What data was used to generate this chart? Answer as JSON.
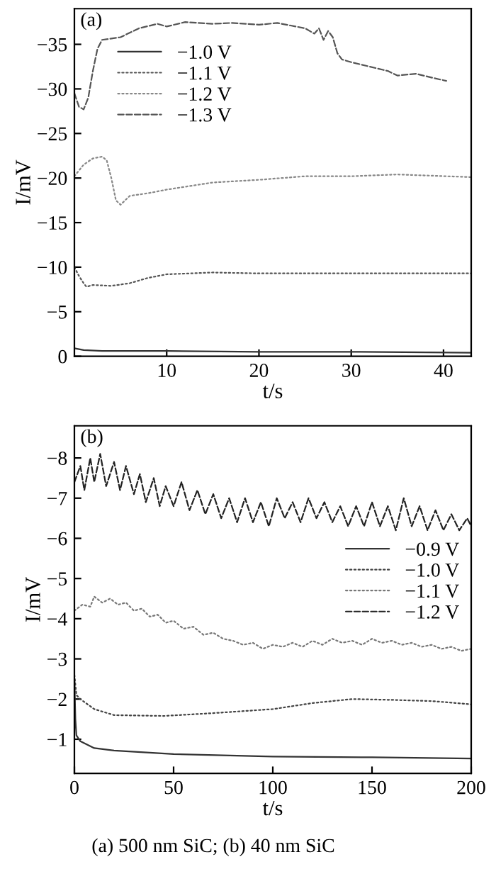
{
  "chart_data": [
    {
      "type": "line",
      "xlabel": "t/s",
      "ylabel": "I/mV",
      "annotations": [
        "(a)"
      ],
      "xlim": [
        0,
        43
      ],
      "ylim": [
        0,
        -39
      ],
      "xticks": [
        10,
        20,
        30,
        40
      ],
      "yticks": [
        {
          "value": 0,
          "label": "0"
        },
        {
          "value": -5,
          "label": "−5"
        },
        {
          "value": -10,
          "label": "−10"
        },
        {
          "value": -15,
          "label": "−15"
        },
        {
          "value": -20,
          "label": "−20"
        },
        {
          "value": -25,
          "label": "−25"
        },
        {
          "value": -30,
          "label": "−30"
        },
        {
          "value": -35,
          "label": "−35"
        }
      ],
      "legend": "top left",
      "grid": false,
      "series": [
        {
          "name": "−1.0 V",
          "color": "#333333",
          "line_style": "solid",
          "x": [
            0,
            1,
            3,
            10,
            20,
            30,
            43
          ],
          "values": [
            -0.9,
            -0.7,
            -0.6,
            -0.6,
            -0.5,
            -0.5,
            -0.4
          ]
        },
        {
          "name": "−1.1 V",
          "color": "#555555",
          "line_style": "dotted",
          "x": [
            0,
            0.5,
            1,
            1.3,
            2,
            4,
            6,
            8,
            10,
            15,
            20,
            30,
            43
          ],
          "values": [
            -10,
            -9,
            -8.2,
            -7.8,
            -8,
            -7.9,
            -8.2,
            -8.8,
            -9.2,
            -9.4,
            -9.3,
            -9.3,
            -9.3
          ]
        },
        {
          "name": "−1.2 V",
          "color": "#888888",
          "line_style": "dotted",
          "x": [
            0,
            1,
            2,
            3,
            3.5,
            4,
            4.5,
            5,
            6,
            8,
            10,
            15,
            20,
            25,
            30,
            35,
            43
          ],
          "values": [
            -20.2,
            -21.5,
            -22.2,
            -22.4,
            -22,
            -20,
            -17.5,
            -17,
            -18,
            -18.3,
            -18.7,
            -19.5,
            -19.8,
            -20.2,
            -20.2,
            -20.4,
            -20.1
          ]
        },
        {
          "name": "−1.3 V",
          "color": "#555555",
          "line_style": "dashed",
          "x": [
            0,
            0.5,
            1,
            1.5,
            2,
            2.5,
            3,
            5,
            7,
            9,
            10,
            12,
            15,
            17,
            20,
            22,
            24,
            25,
            26,
            26.5,
            27,
            27.5,
            28,
            28.5,
            29,
            30,
            32,
            34,
            35,
            37,
            39,
            40.3
          ],
          "values": [
            -29.5,
            -28,
            -27.7,
            -29,
            -32,
            -34.5,
            -35.5,
            -35.8,
            -36.8,
            -37.3,
            -37,
            -37.5,
            -37.3,
            -37.4,
            -37.2,
            -37.4,
            -37,
            -36.8,
            -36.2,
            -36.8,
            -35.5,
            -36.5,
            -35.8,
            -34,
            -33.3,
            -33,
            -32.5,
            -32,
            -31.5,
            -31.7,
            -31.2,
            -30.9
          ]
        }
      ]
    },
    {
      "type": "line",
      "xlabel": "t/s",
      "ylabel": "I/mV",
      "annotations": [
        "(b)",
        "(a) 500 nm SiC; (b) 40 nm SiC"
      ],
      "xlim": [
        0,
        200
      ],
      "ylim": [
        -0.15,
        -8.8
      ],
      "xticks": [
        0,
        50,
        100,
        150,
        200
      ],
      "yticks": [
        {
          "value": -1,
          "label": "−1"
        },
        {
          "value": -2,
          "label": "−2"
        },
        {
          "value": -3,
          "label": "−3"
        },
        {
          "value": -4,
          "label": "−4"
        },
        {
          "value": -5,
          "label": "−5"
        },
        {
          "value": -6,
          "label": "−6"
        },
        {
          "value": -7,
          "label": "−7"
        },
        {
          "value": -8,
          "label": "−8"
        }
      ],
      "legend": "right",
      "grid": false,
      "series": [
        {
          "name": "−0.9 V",
          "color": "#333333",
          "line_style": "solid",
          "x": [
            0,
            0.5,
            1,
            3,
            10,
            20,
            50,
            100,
            150,
            200
          ],
          "values": [
            -2.5,
            -1.5,
            -1.1,
            -0.95,
            -0.78,
            -0.72,
            -0.63,
            -0.57,
            -0.55,
            -0.52
          ]
        },
        {
          "name": "−1.0 V",
          "color": "#444444",
          "line_style": "dotted",
          "x": [
            0,
            1,
            3,
            10,
            20,
            45,
            70,
            100,
            120,
            140,
            160,
            180,
            200
          ],
          "values": [
            -2.6,
            -2.1,
            -2.0,
            -1.75,
            -1.6,
            -1.58,
            -1.65,
            -1.75,
            -1.9,
            -2.0,
            -1.98,
            -1.95,
            -1.87
          ]
        },
        {
          "name": "−1.1 V",
          "color": "#777777",
          "line_style": "dotted",
          "x": [
            0,
            4,
            8,
            10,
            14,
            18,
            22,
            26,
            30,
            34,
            38,
            42,
            46,
            50,
            55,
            60,
            65,
            70,
            75,
            80,
            85,
            90,
            95,
            100,
            105,
            110,
            115,
            120,
            125,
            130,
            135,
            140,
            145,
            150,
            155,
            160,
            165,
            170,
            175,
            180,
            185,
            190,
            195,
            200
          ],
          "values": [
            -4.2,
            -4.35,
            -4.3,
            -4.55,
            -4.4,
            -4.5,
            -4.35,
            -4.4,
            -4.2,
            -4.25,
            -4.05,
            -4.1,
            -3.9,
            -3.95,
            -3.75,
            -3.8,
            -3.6,
            -3.65,
            -3.5,
            -3.45,
            -3.35,
            -3.4,
            -3.25,
            -3.35,
            -3.3,
            -3.4,
            -3.3,
            -3.45,
            -3.35,
            -3.5,
            -3.4,
            -3.45,
            -3.35,
            -3.5,
            -3.4,
            -3.45,
            -3.35,
            -3.4,
            -3.3,
            -3.35,
            -3.25,
            -3.3,
            -3.2,
            -3.25
          ]
        },
        {
          "name": "−1.2 V",
          "color": "#222222",
          "line_style": "dashed",
          "x": [
            0,
            3,
            5,
            8,
            10,
            13,
            16,
            20,
            23,
            26,
            30,
            33,
            36,
            40,
            43,
            46,
            50,
            54,
            58,
            62,
            66,
            70,
            74,
            78,
            82,
            86,
            90,
            94,
            98,
            102,
            106,
            110,
            114,
            118,
            122,
            126,
            130,
            134,
            138,
            142,
            146,
            150,
            154,
            158,
            162,
            166,
            170,
            174,
            178,
            182,
            186,
            190,
            194,
            198,
            200
          ],
          "values": [
            -7.4,
            -7.8,
            -7.2,
            -8.0,
            -7.4,
            -8.1,
            -7.3,
            -7.9,
            -7.2,
            -7.8,
            -7.1,
            -7.6,
            -6.9,
            -7.5,
            -6.8,
            -7.3,
            -6.8,
            -7.4,
            -6.7,
            -7.2,
            -6.6,
            -7.1,
            -6.5,
            -7.0,
            -6.4,
            -7.0,
            -6.4,
            -6.9,
            -6.3,
            -7.0,
            -6.5,
            -6.9,
            -6.4,
            -7.0,
            -6.5,
            -6.9,
            -6.4,
            -6.8,
            -6.3,
            -6.8,
            -6.3,
            -6.9,
            -6.3,
            -6.8,
            -6.2,
            -7.0,
            -6.3,
            -6.8,
            -6.2,
            -6.7,
            -6.2,
            -6.6,
            -6.2,
            -6.5,
            -6.3
          ]
        }
      ]
    }
  ]
}
